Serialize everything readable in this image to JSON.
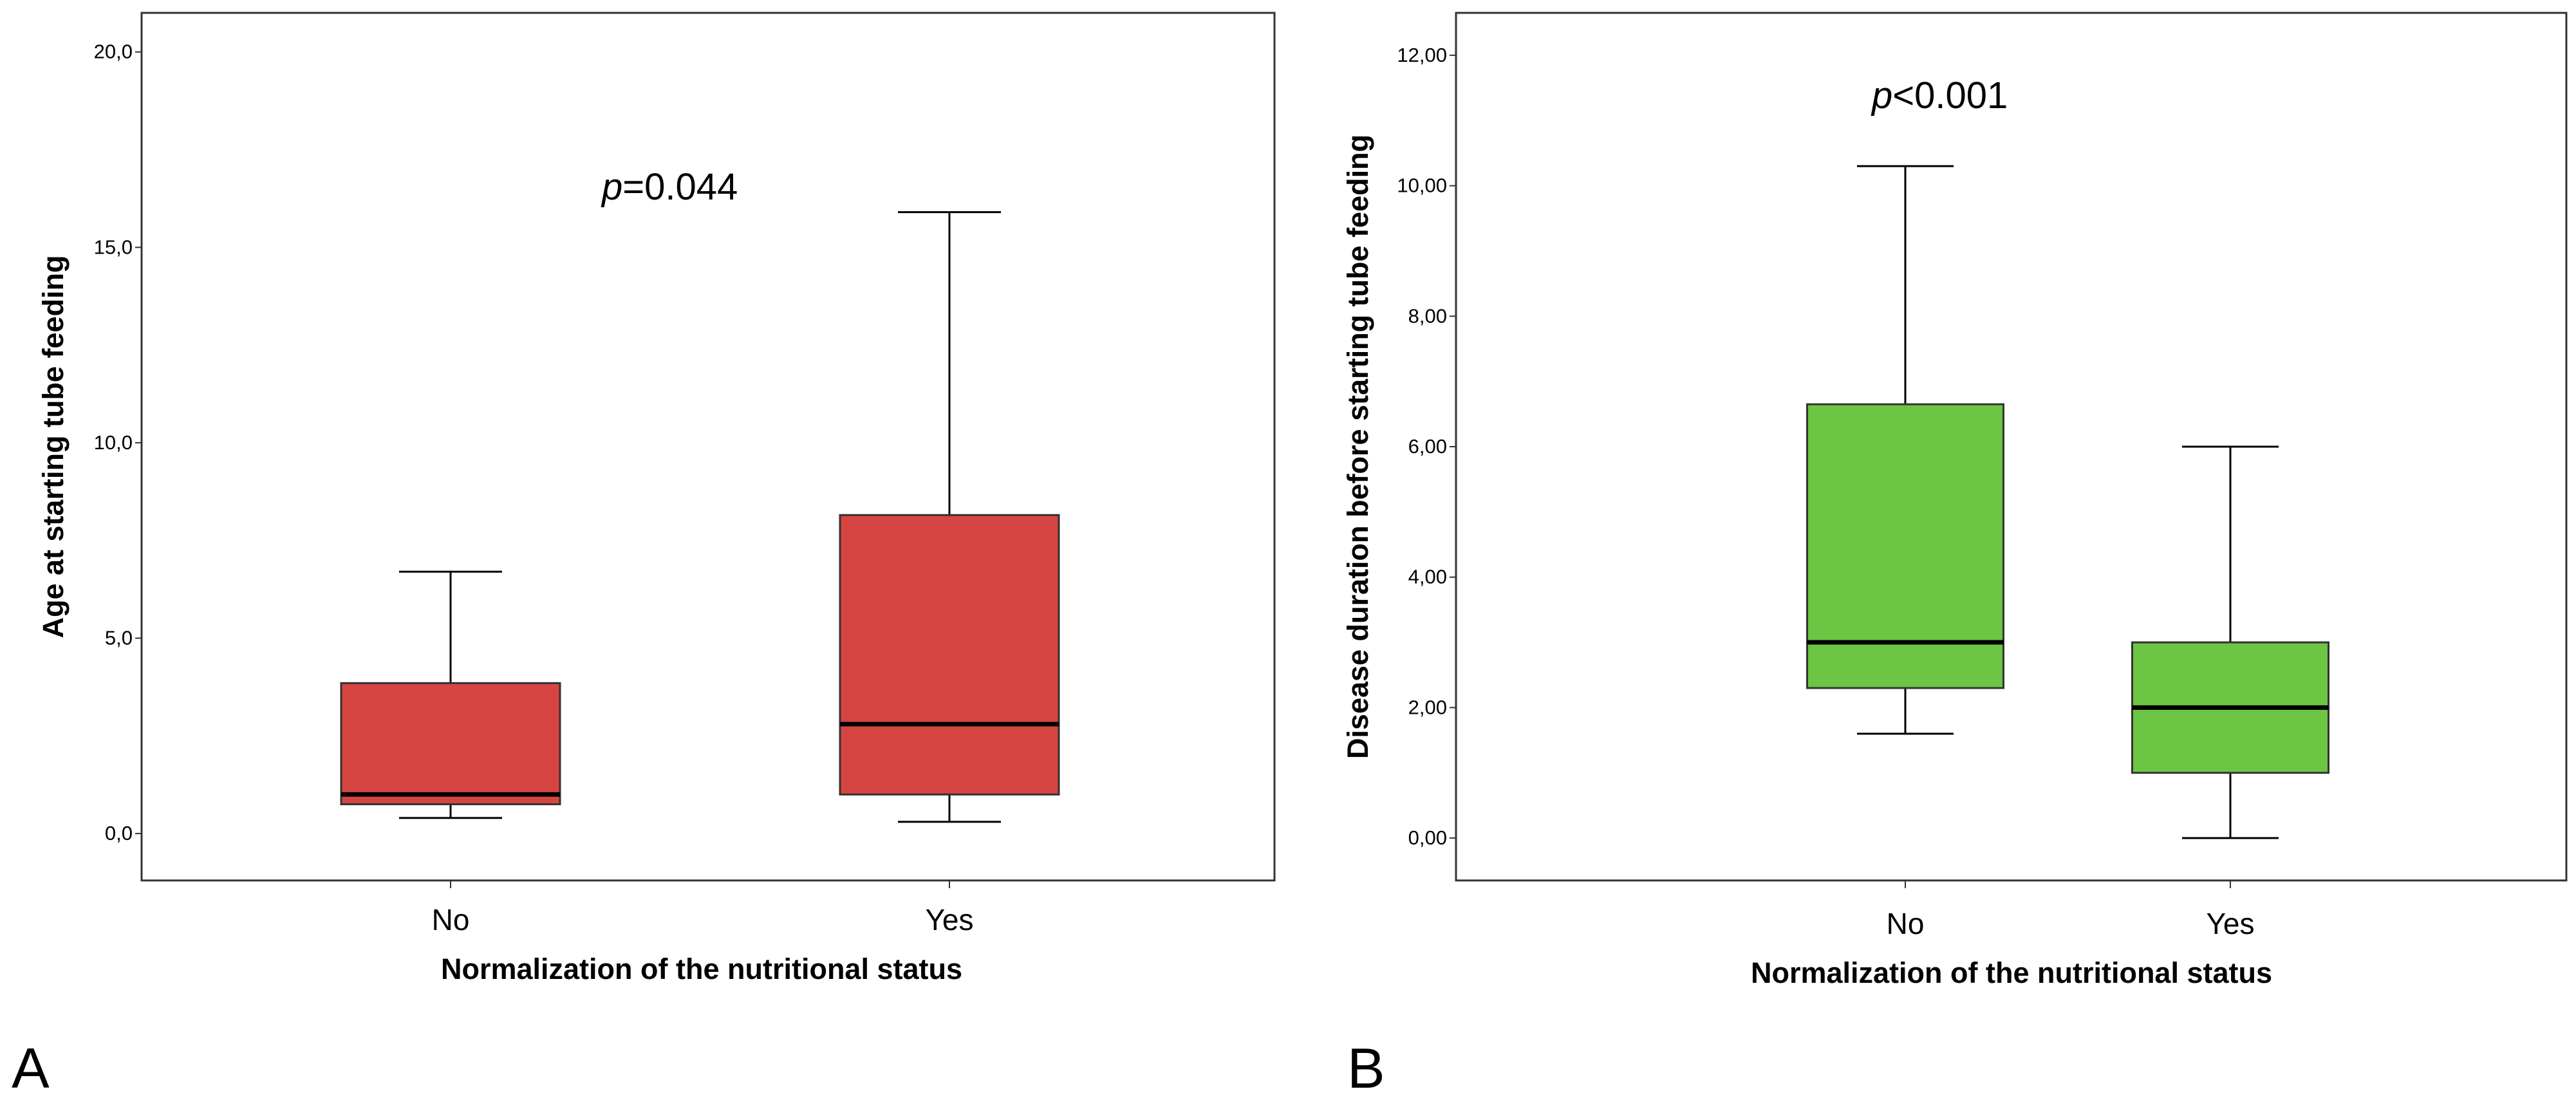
{
  "chart_data": [
    {
      "type": "box",
      "panel_label": "A",
      "xlabel": "Normalization of the nutritional status",
      "ylabel": "Age at starting tube feeding",
      "ylim": [
        -1.2,
        21.0
      ],
      "yticks": [
        0,
        5,
        10,
        15,
        20
      ],
      "ytick_labels": [
        "0,0",
        "5,0",
        "10,0",
        "15,0",
        "20,0"
      ],
      "categories": [
        "No",
        "Yes"
      ],
      "annotation": {
        "italic": "p",
        "rest": "=0.044"
      },
      "box_color": "#d64541",
      "boxes": [
        {
          "category": "No",
          "min": 0.4,
          "q1": 0.75,
          "median": 1.0,
          "q3": 3.85,
          "max": 6.7
        },
        {
          "category": "Yes",
          "min": 0.3,
          "q1": 1.0,
          "median": 2.8,
          "q3": 8.15,
          "max": 15.9
        }
      ]
    },
    {
      "type": "box",
      "panel_label": "B",
      "xlabel": "Normalization of the nutritional status",
      "ylabel": "Disease duration before starting tube feeding",
      "ylim": [
        -0.65,
        12.65
      ],
      "yticks": [
        0,
        2,
        4,
        6,
        8,
        10,
        12
      ],
      "ytick_labels": [
        "0,00",
        "2,00",
        "4,00",
        "6,00",
        "8,00",
        "10,00",
        "12,00"
      ],
      "categories": [
        "No",
        "Yes"
      ],
      "annotation": {
        "italic": "p",
        "rest": "<0.001"
      },
      "box_color": "#6cc644",
      "boxes": [
        {
          "category": "No",
          "min": 1.6,
          "q1": 2.3,
          "median": 3.0,
          "q3": 6.65,
          "max": 10.3
        },
        {
          "category": "Yes",
          "min": 0.0,
          "q1": 1.0,
          "median": 2.0,
          "q3": 3.0,
          "max": 6.0
        }
      ]
    }
  ]
}
